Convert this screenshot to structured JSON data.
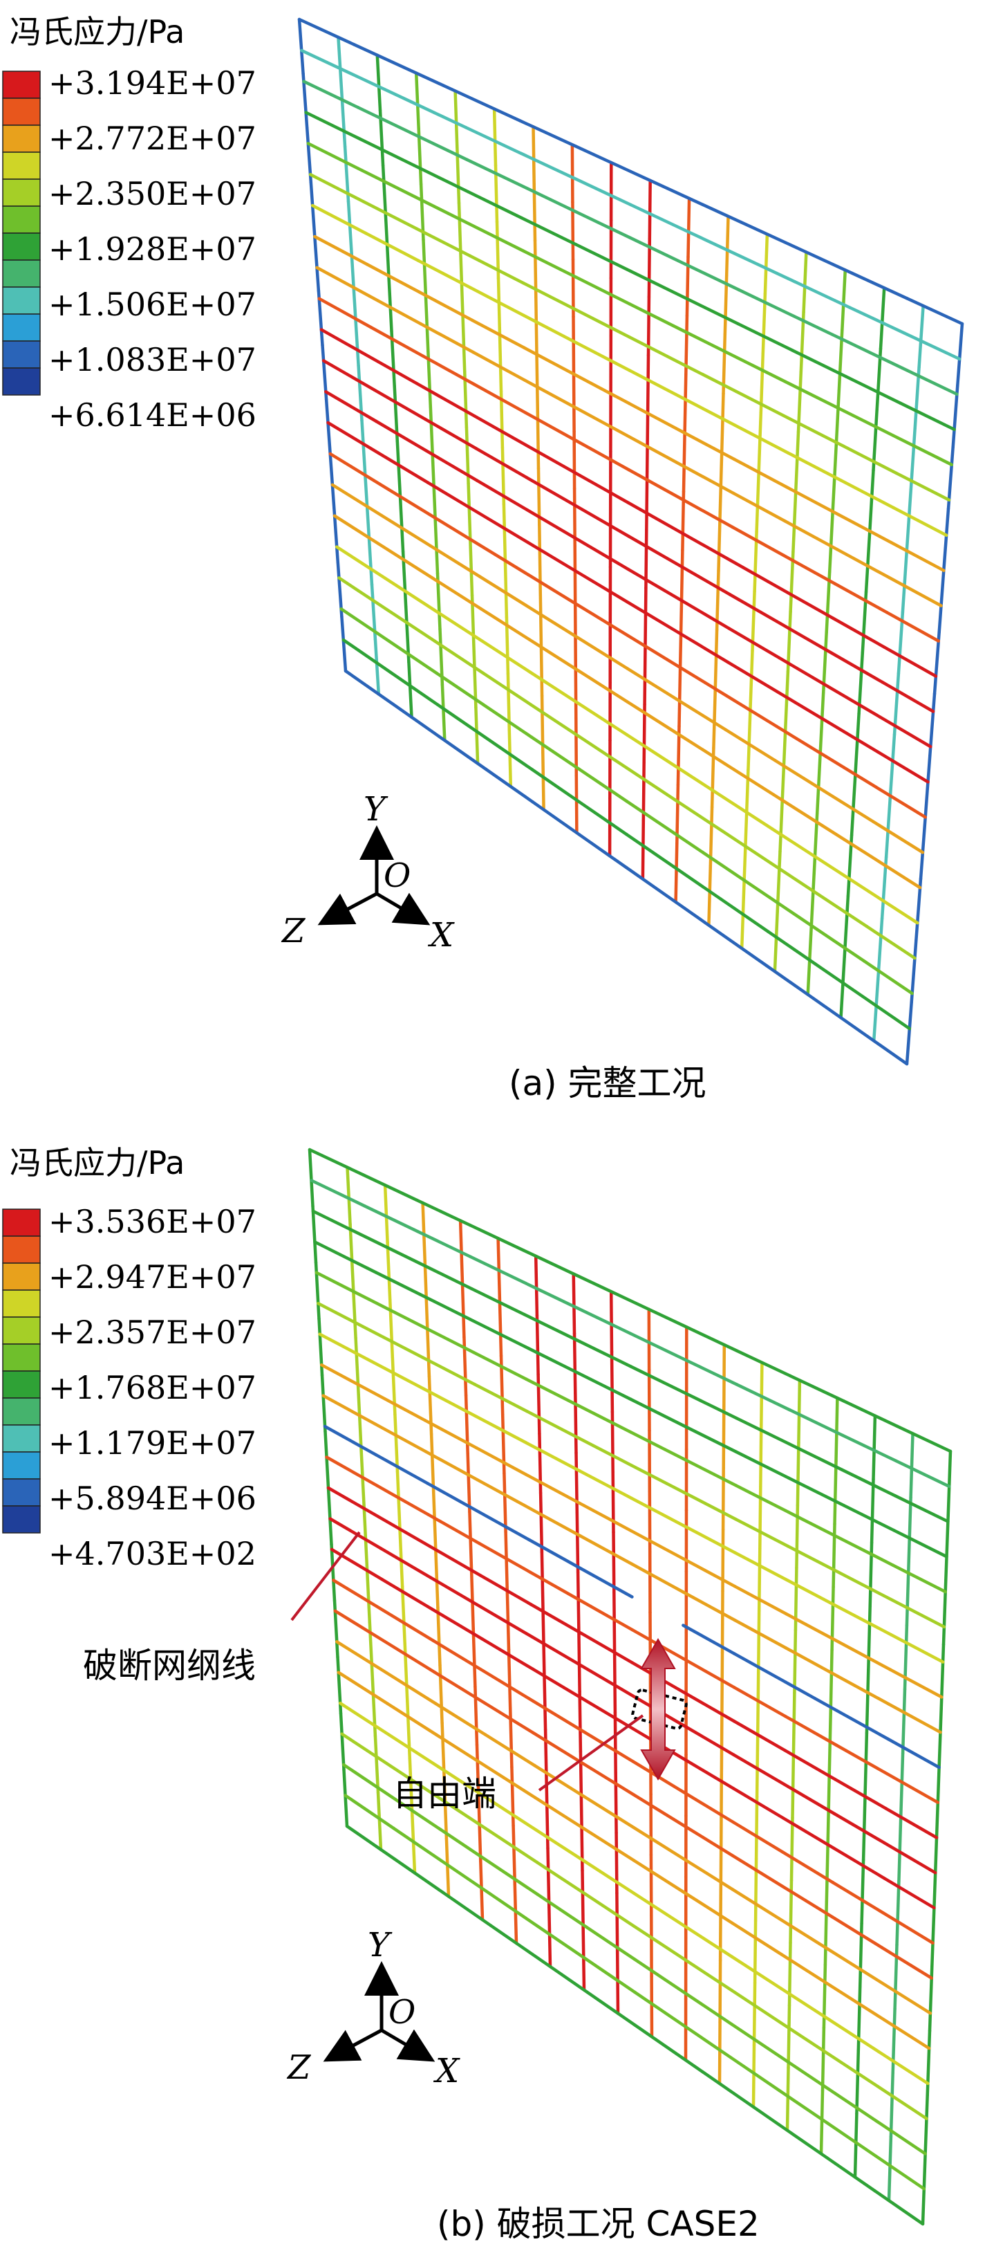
{
  "panels": [
    {
      "id": "a",
      "legend": {
        "title": "冯氏应力/Pa",
        "values": [
          "+3.194E+07",
          "+2.772E+07",
          "+2.350E+07",
          "+1.928E+07",
          "+1.506E+07",
          "+1.083E+07",
          "+6.614E+06"
        ]
      },
      "axes": {
        "y": "Y",
        "origin": "O",
        "z": "Z",
        "x": "X"
      },
      "caption": "(a)  完整工况"
    },
    {
      "id": "b",
      "legend": {
        "title": "冯氏应力/Pa",
        "values": [
          "+3.536E+07",
          "+2.947E+07",
          "+2.357E+07",
          "+1.768E+07",
          "+1.179E+07",
          "+5.894E+06",
          "+4.703E+02"
        ]
      },
      "axes": {
        "y": "Y",
        "origin": "O",
        "z": "Z",
        "x": "X"
      },
      "annotations": {
        "broken_line": "破断网纲线",
        "free_end": "自由端"
      },
      "caption": "(b)  破损工况 CASE2"
    }
  ],
  "colors": {
    "scale": [
      "#d7191c",
      "#e8561c",
      "#e8a11c",
      "#cfd527",
      "#a5cf27",
      "#6fbf2c",
      "#2fa236",
      "#45b36d",
      "#4fbfb5",
      "#2b9fd6",
      "#2a64b8",
      "#1f3f99"
    ],
    "annotation": "#c0192b"
  }
}
